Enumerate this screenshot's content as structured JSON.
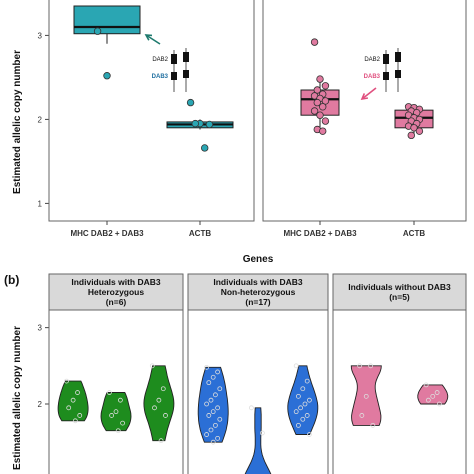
{
  "chart_data": [
    {
      "type": "box",
      "panel": "a",
      "ylabel": "Estimated allelic copy number",
      "xlabel": "Genes",
      "ylim": [
        0.85,
        3.35
      ],
      "yticks": [
        1,
        2,
        3
      ],
      "facets": [
        {
          "categories": [
            "MHC DAB2 + DAB3",
            "ACTB"
          ],
          "boxes": [
            {
              "q1": 3.02,
              "median": 3.1,
              "q3": 3.35,
              "whisker_low": 2.9,
              "whisker_high": 3.35,
              "color": "#2aa6b3",
              "points": [
                3.05,
                2.52
              ]
            },
            {
              "q1": 1.9,
              "median": 1.94,
              "q3": 1.97,
              "whisker_low": 1.88,
              "whisker_high": 2.0,
              "color": "#2aa6b3",
              "points": [
                2.2,
                1.95,
                1.94,
                1.95,
                1.66
              ]
            }
          ],
          "arrow_color": "#1f7a6e",
          "inset_labels": [
            "DAB2",
            "DAB3"
          ],
          "inset_label_colors": [
            "#111111",
            "#1f6fa0"
          ]
        },
        {
          "categories": [
            "MHC DAB2 + DAB3",
            "ACTB"
          ],
          "boxes": [
            {
              "q1": 2.05,
              "median": 2.24,
              "q3": 2.35,
              "whisker_low": 1.85,
              "whisker_high": 2.5,
              "color": "#e07aa0",
              "points": [
                2.92,
                2.48,
                2.4,
                2.35,
                2.3,
                2.28,
                2.25,
                2.22,
                2.2,
                2.15,
                2.1,
                2.05,
                1.98,
                1.88,
                1.86
              ]
            },
            {
              "q1": 1.9,
              "median": 2.02,
              "q3": 2.11,
              "whisker_low": 1.8,
              "whisker_high": 2.15,
              "color": "#e07aa0",
              "points": [
                2.15,
                2.14,
                2.12,
                2.1,
                2.08,
                2.05,
                2.02,
                2.0,
                1.98,
                1.95,
                1.92,
                1.9,
                1.86,
                1.81
              ]
            }
          ],
          "arrow_color": "#e0507f",
          "inset_labels": [
            "DAB2",
            "DAB3"
          ],
          "inset_label_colors": [
            "#111111",
            "#e0507f"
          ]
        }
      ]
    },
    {
      "type": "violin",
      "panel": "b",
      "ylabel": "Estimated allelic copy number",
      "ylim": [
        0.9,
        3.1
      ],
      "yticks": [
        1,
        2,
        3
      ],
      "facets": [
        {
          "title_lines": [
            "Individuals with DAB3",
            "Heterozygous",
            "(n=6)"
          ],
          "color": "#1e8c1e",
          "violins": [
            {
              "points": [
                2.3,
                2.15,
                2.05,
                1.95,
                1.85,
                1.78
              ]
            },
            {
              "points": [
                2.15,
                2.05,
                1.9,
                1.85,
                1.75,
                1.65
              ]
            },
            {
              "points": [
                2.5,
                2.2,
                2.05,
                1.95,
                1.85,
                1.52
              ]
            }
          ]
        },
        {
          "title_lines": [
            "Individuals with DAB3",
            "Non-heterozygous",
            "(n=17)"
          ],
          "color": "#2b6fd6",
          "violins": [
            {
              "points": [
                2.48,
                2.42,
                2.35,
                2.28,
                2.2,
                2.12,
                2.05,
                2.0,
                1.95,
                1.9,
                1.85,
                1.8,
                1.72,
                1.66,
                1.6,
                1.55,
                1.5
              ]
            },
            {
              "points": [
                1.95,
                1.62,
                1.05,
                1.0,
                0.98,
                0.95,
                0.93,
                0.92,
                0.9
              ]
            },
            {
              "points": [
                2.5,
                2.3,
                2.2,
                2.1,
                2.05,
                2.0,
                1.95,
                1.9,
                1.85,
                1.8,
                1.72,
                1.6
              ]
            }
          ]
        },
        {
          "title_lines": [
            "Individuals without DAB3",
            "(n=5)"
          ],
          "color": "#e07aa0",
          "violins": [
            {
              "points": [
                2.5,
                2.5,
                2.1,
                1.85,
                1.72
              ]
            },
            {
              "points": [
                2.25,
                2.15,
                2.1,
                2.05,
                2.0
              ]
            }
          ]
        }
      ]
    }
  ],
  "panel_label_b": "(b)"
}
